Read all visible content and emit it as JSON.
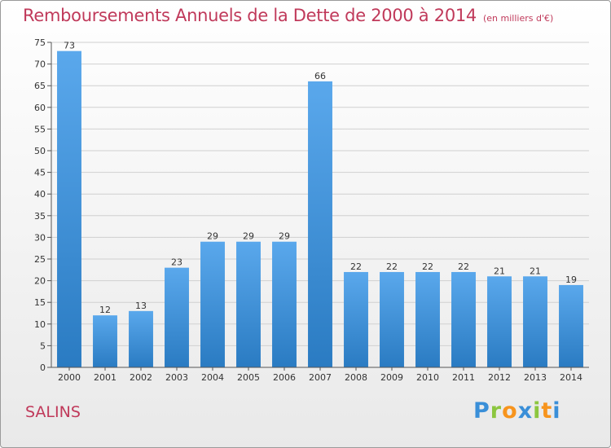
{
  "title": "Remboursements Annuels de la Dette de 2000 à 2014",
  "unit": "(en milliers d'€)",
  "town": "SALINS",
  "logo": {
    "text": "Proxiti",
    "letters": [
      {
        "char": "P",
        "color": "#3a8fd8"
      },
      {
        "char": "r",
        "color": "#8cc63f"
      },
      {
        "char": "o",
        "color": "#f7941d"
      },
      {
        "char": "x",
        "color": "#3a8fd8"
      },
      {
        "char": "i",
        "color": "#8cc63f"
      },
      {
        "char": "t",
        "color": "#f7941d"
      },
      {
        "char": "i",
        "color": "#3a8fd8"
      }
    ]
  },
  "colors": {
    "title": "#c0395a",
    "bar_top": "#5aa8ec",
    "bar_bottom": "#2a7bc2",
    "grid": "#d0d0d0"
  },
  "chart_data": {
    "type": "bar",
    "title": "Remboursements Annuels de la Dette de 2000 à 2014",
    "xlabel": "",
    "ylabel": "",
    "categories": [
      "2000",
      "2001",
      "2002",
      "2003",
      "2004",
      "2005",
      "2006",
      "2007",
      "2008",
      "2009",
      "2010",
      "2011",
      "2012",
      "2013",
      "2014"
    ],
    "values": [
      73,
      12,
      13,
      23,
      29,
      29,
      29,
      66,
      22,
      22,
      22,
      22,
      21,
      21,
      19
    ],
    "value_labels": [
      "73",
      "12",
      "13",
      "23",
      "29",
      "29",
      "29",
      "66",
      "22",
      "22",
      "22",
      "22",
      "21",
      "21",
      "19"
    ],
    "ylim": [
      0,
      75
    ],
    "yticks": [
      "0",
      "5",
      "10",
      "15",
      "20",
      "25",
      "30",
      "35",
      "40",
      "45",
      "50",
      "55",
      "60",
      "65",
      "70",
      "75"
    ],
    "grid": true,
    "legend": "none"
  }
}
